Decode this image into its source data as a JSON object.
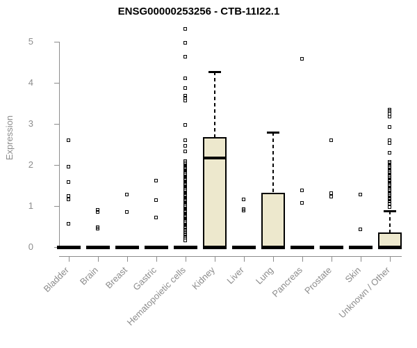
{
  "colors": {
    "box_fill": "#EDE8CD",
    "line": "#000000",
    "axis_gray": "#8C8C8C",
    "background": "#FFFFFF"
  },
  "chart_data": {
    "type": "boxplot",
    "title": "ENSG00000253256 - CTB-11I22.1",
    "xlabel": "",
    "ylabel": "Expression",
    "ylim": [
      0,
      5.4
    ],
    "yticks": [
      0,
      1,
      2,
      3,
      4,
      5
    ],
    "grid": false,
    "legend": false,
    "categories": [
      "Bladder",
      "Brain",
      "Breast",
      "Gastric",
      "Hematopoietic cells",
      "Kidney",
      "Liver",
      "Lung",
      "Pancreas",
      "Prostate",
      "Skin",
      "Unknown / Other"
    ],
    "boxes": [
      {
        "category": "Bladder",
        "q1": 0,
        "median": 0,
        "q3": 0,
        "whisker_low": 0,
        "whisker_high": 0,
        "outliers": [
          2.6,
          1.95,
          1.58,
          1.24,
          1.16,
          0.56
        ]
      },
      {
        "category": "Brain",
        "q1": 0,
        "median": 0,
        "q3": 0,
        "whisker_low": 0,
        "whisker_high": 0,
        "outliers": [
          0.89,
          0.85,
          0.47,
          0.44
        ]
      },
      {
        "category": "Breast",
        "q1": 0,
        "median": 0,
        "q3": 0,
        "whisker_low": 0,
        "whisker_high": 0,
        "outliers": [
          1.27,
          0.85
        ]
      },
      {
        "category": "Gastric",
        "q1": 0,
        "median": 0,
        "q3": 0,
        "whisker_low": 0,
        "whisker_high": 0,
        "outliers": [
          1.61,
          1.13,
          0.72
        ]
      },
      {
        "category": "Hematopoietic cells",
        "q1": 0,
        "median": 0,
        "q3": 0,
        "whisker_low": 0,
        "whisker_high": 0,
        "outliers": [
          5.31,
          4.97,
          4.62,
          4.1,
          3.87,
          3.67,
          3.62,
          3.56,
          2.97,
          2.59,
          2.46,
          2.32,
          2.08,
          2.05,
          2.02,
          1.99,
          1.96,
          1.93,
          1.9,
          1.87,
          1.84,
          1.81,
          1.78,
          1.75,
          1.72,
          1.69,
          1.66,
          1.63,
          1.6,
          1.57,
          1.54,
          1.51,
          1.48,
          1.45,
          1.42,
          1.39,
          1.36,
          1.33,
          1.3,
          1.27,
          1.24,
          1.21,
          1.18,
          1.15,
          1.12,
          1.09,
          1.06,
          1.03,
          1.0,
          0.97,
          0.94,
          0.91,
          0.88,
          0.85,
          0.82,
          0.79,
          0.76,
          0.73,
          0.7,
          0.67,
          0.64,
          0.61,
          0.58,
          0.55,
          0.52,
          0.49,
          0.46,
          0.43,
          0.4,
          0.36,
          0.31,
          0.26,
          0.22,
          0.15
        ]
      },
      {
        "category": "Kidney",
        "q1": 0,
        "median": 2.17,
        "q3": 2.68,
        "whisker_low": 0,
        "whisker_high": 4.27,
        "outliers": []
      },
      {
        "category": "Liver",
        "q1": 0,
        "median": 0,
        "q3": 0,
        "whisker_low": 0,
        "whisker_high": 0,
        "outliers": [
          1.16,
          0.92,
          0.88
        ]
      },
      {
        "category": "Lung",
        "q1": 0,
        "median": 0,
        "q3": 1.32,
        "whisker_low": 0,
        "whisker_high": 2.8,
        "outliers": []
      },
      {
        "category": "Pancreas",
        "q1": 0,
        "median": 0,
        "q3": 0,
        "whisker_low": 0,
        "whisker_high": 0,
        "outliers": [
          4.58,
          1.38,
          1.07
        ]
      },
      {
        "category": "Prostate",
        "q1": 0,
        "median": 0,
        "q3": 0,
        "whisker_low": 0,
        "whisker_high": 0,
        "outliers": [
          2.6,
          1.31,
          1.22
        ]
      },
      {
        "category": "Skin",
        "q1": 0,
        "median": 0,
        "q3": 0,
        "whisker_low": 0,
        "whisker_high": 0,
        "outliers": [
          1.27,
          0.42
        ]
      },
      {
        "category": "Unknown / Other",
        "q1": 0,
        "median": 0,
        "q3": 0.35,
        "whisker_low": 0,
        "whisker_high": 0.88,
        "outliers": [
          3.34,
          3.3,
          3.24,
          3.17,
          2.91,
          2.6,
          2.52,
          2.29,
          2.07,
          2.03,
          1.99,
          1.95,
          1.91,
          1.87,
          1.83,
          1.79,
          1.75,
          1.71,
          1.67,
          1.63,
          1.59,
          1.55,
          1.51,
          1.47,
          1.43,
          1.39,
          1.35,
          1.31,
          1.27,
          1.23,
          1.19,
          1.15,
          1.1,
          1.05,
          0.97
        ]
      }
    ]
  }
}
